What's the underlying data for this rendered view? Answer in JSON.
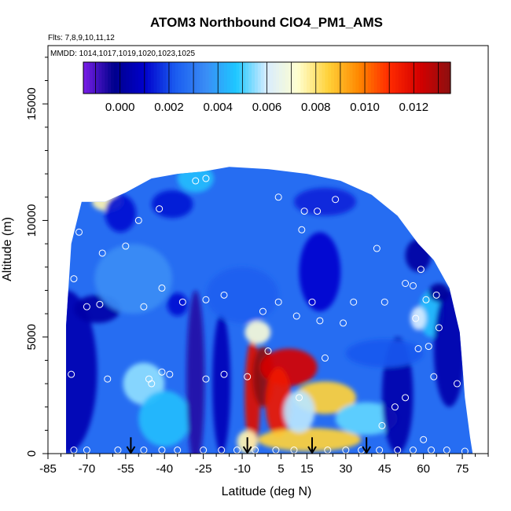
{
  "chart_data": {
    "type": "heatmap",
    "title": "ATOM3 Northbound ClO4_PM1_AMS",
    "subtitle_flights": "Flts: 7,8,9,10,11,12",
    "subtitle_dates": "MMDD: 1014,1017,1019,1020,1023,1025",
    "xlabel": "Latitude (deg N)",
    "ylabel": "Altitude (m)",
    "xlim": [
      -85,
      85
    ],
    "ylim": [
      0,
      17500
    ],
    "x_ticks": [
      "-85",
      "-70",
      "-55",
      "-40",
      "-25",
      "-10",
      "5",
      "15",
      "30",
      "45",
      "60",
      "75"
    ],
    "x_tick_values": [
      -85,
      -70,
      -55,
      -40,
      -25,
      -10,
      5,
      15,
      30,
      45,
      60,
      75
    ],
    "y_ticks": [
      "0",
      "5000",
      "10000",
      "15000"
    ],
    "y_tick_values": [
      0,
      5000,
      10000,
      15000
    ],
    "colorbar": {
      "min": -0.0015,
      "max": 0.0135,
      "tick_labels": [
        "0.000",
        "0.002",
        "0.004",
        "0.006",
        "0.008",
        "0.010",
        "0.012"
      ],
      "tick_values": [
        0.0,
        0.002,
        0.004,
        0.006,
        0.008,
        0.01,
        0.012
      ],
      "colors": [
        "#7a1fe8",
        "#00008c",
        "#0000cc",
        "#1a5cf0",
        "#3a8cf5",
        "#1ec8ff",
        "#d8ecff",
        "#ffffd0",
        "#ffd23a",
        "#ff8800",
        "#ff2a00",
        "#d40000",
        "#8c1010"
      ]
    },
    "cloud_extent": [
      {
        "lat": -78,
        "top": 5500
      },
      {
        "lat": -76,
        "top": 9000
      },
      {
        "lat": -72,
        "top": 10800
      },
      {
        "lat": -63,
        "top": 10800
      },
      {
        "lat": -55,
        "top": 11200
      },
      {
        "lat": -45,
        "top": 11800
      },
      {
        "lat": -35,
        "top": 12000
      },
      {
        "lat": -25,
        "top": 12100
      },
      {
        "lat": -15,
        "top": 12300
      },
      {
        "lat": 0,
        "top": 12200
      },
      {
        "lat": 15,
        "top": 12000
      },
      {
        "lat": 28,
        "top": 11700
      },
      {
        "lat": 40,
        "top": 11100
      },
      {
        "lat": 50,
        "top": 10200
      },
      {
        "lat": 58,
        "top": 9000
      },
      {
        "lat": 64,
        "top": 8300
      },
      {
        "lat": 70,
        "top": 7100
      },
      {
        "lat": 74,
        "top": 5200
      },
      {
        "lat": 76,
        "top": 2400
      },
      {
        "lat": 78,
        "top": 700
      },
      {
        "lat": 79,
        "top": 0
      }
    ],
    "features": [
      {
        "lat": -78,
        "alt": 3500,
        "rx": 12,
        "ry": 3500,
        "value": 0.0005
      },
      {
        "lat": -66,
        "alt": 6200,
        "rx": 9,
        "ry": 600,
        "value": 0.0003
      },
      {
        "lat": -62,
        "alt": 10800,
        "rx": 6,
        "ry": 400,
        "value": 0.0075
      },
      {
        "lat": -57,
        "alt": 10300,
        "rx": 6,
        "ry": 800,
        "value": 0.0012
      },
      {
        "lat": -52,
        "alt": 7500,
        "rx": 15,
        "ry": 1500,
        "value": 0.0035
      },
      {
        "lat": -48,
        "alt": 3000,
        "rx": 8,
        "ry": 900,
        "value": 0.0055
      },
      {
        "lat": -40,
        "alt": 1500,
        "rx": 10,
        "ry": 1200,
        "value": 0.0045
      },
      {
        "lat": -37,
        "alt": 10700,
        "rx": 8,
        "ry": 600,
        "value": 0.0013
      },
      {
        "lat": -35,
        "alt": 6400,
        "rx": 4,
        "ry": 500,
        "value": 0.0012
      },
      {
        "lat": -28,
        "alt": 3200,
        "rx": 3.5,
        "ry": 3800,
        "value": -0.0006
      },
      {
        "lat": -28,
        "alt": 11800,
        "rx": 7,
        "ry": 600,
        "value": 0.0045
      },
      {
        "lat": -18,
        "alt": 3000,
        "rx": 3.5,
        "ry": 3000,
        "value": 0.0006
      },
      {
        "lat": -10,
        "alt": 6800,
        "rx": 14,
        "ry": 1200,
        "value": 0.0023
      },
      {
        "lat": -6,
        "alt": 2500,
        "rx": 3,
        "ry": 2400,
        "value": 0.012
      },
      {
        "lat": -2,
        "alt": 3300,
        "rx": 4,
        "ry": 1300,
        "value": 0.0135
      },
      {
        "lat": 8,
        "alt": 3700,
        "rx": 11,
        "ry": 800,
        "value": 0.0122
      },
      {
        "lat": 4,
        "alt": 2200,
        "rx": 5,
        "ry": 1500,
        "value": 0.0115
      },
      {
        "lat": 22,
        "alt": 2400,
        "rx": 12,
        "ry": 700,
        "value": 0.0085
      },
      {
        "lat": 16,
        "alt": 600,
        "rx": 20,
        "ry": 500,
        "value": 0.0085
      },
      {
        "lat": 12,
        "alt": 1800,
        "rx": 6,
        "ry": 900,
        "value": 0.0058
      },
      {
        "lat": -4,
        "alt": 5200,
        "rx": 5,
        "ry": 500,
        "value": 0.007
      },
      {
        "lat": -8,
        "alt": 500,
        "rx": 4,
        "ry": 500,
        "value": 0.0075
      },
      {
        "lat": 20,
        "alt": 7800,
        "rx": 8,
        "ry": 1700,
        "value": 0.0011
      },
      {
        "lat": 22,
        "alt": 10800,
        "rx": 12,
        "ry": 600,
        "value": 0.0015
      },
      {
        "lat": 38,
        "alt": 1500,
        "rx": 12,
        "ry": 700,
        "value": 0.0052
      },
      {
        "lat": 50,
        "alt": 2500,
        "rx": 6,
        "ry": 2500,
        "value": 0.0004
      },
      {
        "lat": 45,
        "alt": 4300,
        "rx": 15,
        "ry": 600,
        "value": 0.0022
      },
      {
        "lat": 58,
        "alt": 8500,
        "rx": 5,
        "ry": 700,
        "value": 0.0002
      },
      {
        "lat": 63,
        "alt": 6000,
        "rx": 5,
        "ry": 1000,
        "value": 0.0045
      },
      {
        "lat": 70,
        "alt": 4500,
        "rx": 6,
        "ry": 2500,
        "value": 0.0004
      },
      {
        "lat": 66,
        "alt": 6900,
        "rx": 4,
        "ry": 400,
        "value": 0.0
      },
      {
        "lat": 58,
        "alt": 5800,
        "rx": 3,
        "ry": 500,
        "value": 0.006
      }
    ],
    "background_value": 0.0027,
    "sample_points": [
      {
        "lat": -80,
        "alt": 5500
      },
      {
        "lat": -76,
        "alt": 3400
      },
      {
        "lat": -75,
        "alt": 7500
      },
      {
        "lat": -73,
        "alt": 9500
      },
      {
        "lat": -70,
        "alt": 6300
      },
      {
        "lat": -65,
        "alt": 6400
      },
      {
        "lat": -64,
        "alt": 8600
      },
      {
        "lat": -62,
        "alt": 3200
      },
      {
        "lat": -55,
        "alt": 8900
      },
      {
        "lat": -50,
        "alt": 10000
      },
      {
        "lat": -48,
        "alt": 6300
      },
      {
        "lat": -46,
        "alt": 3200
      },
      {
        "lat": -45,
        "alt": 3000
      },
      {
        "lat": -42,
        "alt": 10500
      },
      {
        "lat": -41,
        "alt": 7100
      },
      {
        "lat": -41,
        "alt": 3500
      },
      {
        "lat": -38,
        "alt": 3400
      },
      {
        "lat": -33,
        "alt": 6500
      },
      {
        "lat": -28,
        "alt": 11700
      },
      {
        "lat": -24,
        "alt": 11800
      },
      {
        "lat": -24,
        "alt": 6600
      },
      {
        "lat": -24,
        "alt": 3200
      },
      {
        "lat": -17,
        "alt": 6800
      },
      {
        "lat": -17,
        "alt": 3400
      },
      {
        "lat": -8,
        "alt": 12600
      },
      {
        "lat": -2,
        "alt": 6100
      },
      {
        "lat": 0,
        "alt": 4400
      },
      {
        "lat": -8,
        "alt": 3300
      },
      {
        "lat": 4,
        "alt": 11000
      },
      {
        "lat": 4,
        "alt": 6500
      },
      {
        "lat": 11,
        "alt": 5900
      },
      {
        "lat": 12,
        "alt": 2400
      },
      {
        "lat": 13,
        "alt": 9600
      },
      {
        "lat": 14,
        "alt": 10400
      },
      {
        "lat": 17,
        "alt": 6500
      },
      {
        "lat": 19,
        "alt": 10400
      },
      {
        "lat": 20,
        "alt": 5700
      },
      {
        "lat": 22,
        "alt": 4100
      },
      {
        "lat": 26,
        "alt": 10900
      },
      {
        "lat": 29,
        "alt": 5600
      },
      {
        "lat": 33,
        "alt": 6500
      },
      {
        "lat": 39,
        "alt": 11500
      },
      {
        "lat": 42,
        "alt": 8800
      },
      {
        "lat": 44,
        "alt": 1200
      },
      {
        "lat": 45,
        "alt": 6500
      },
      {
        "lat": 49,
        "alt": 2000
      },
      {
        "lat": 53,
        "alt": 7300
      },
      {
        "lat": 53,
        "alt": 2400
      },
      {
        "lat": 56,
        "alt": 7200
      },
      {
        "lat": 57,
        "alt": 5800
      },
      {
        "lat": 58,
        "alt": 4500
      },
      {
        "lat": 59,
        "alt": 7900
      },
      {
        "lat": 60,
        "alt": 600
      },
      {
        "lat": 61,
        "alt": 6600
      },
      {
        "lat": 62,
        "alt": 4600
      },
      {
        "lat": 64,
        "alt": 3300
      },
      {
        "lat": 65,
        "alt": 6800
      },
      {
        "lat": 66,
        "alt": 5400
      },
      {
        "lat": 68,
        "alt": 8400
      },
      {
        "lat": 73,
        "alt": 3000
      },
      {
        "lat": 76,
        "alt": 100
      },
      {
        "lat": -75,
        "alt": 150
      },
      {
        "lat": -70,
        "alt": 150
      },
      {
        "lat": -58,
        "alt": 150
      },
      {
        "lat": -48,
        "alt": 150
      },
      {
        "lat": -41,
        "alt": 150
      },
      {
        "lat": -35,
        "alt": 150
      },
      {
        "lat": -25,
        "alt": 150
      },
      {
        "lat": -18,
        "alt": 150
      },
      {
        "lat": -12,
        "alt": 150
      },
      {
        "lat": -5,
        "alt": 150
      },
      {
        "lat": 3,
        "alt": 150
      },
      {
        "lat": 10,
        "alt": 150
      },
      {
        "lat": 23,
        "alt": 150
      },
      {
        "lat": 30,
        "alt": 150
      },
      {
        "lat": 36,
        "alt": 150
      },
      {
        "lat": 43,
        "alt": 150
      },
      {
        "lat": 50,
        "alt": 150
      },
      {
        "lat": 56,
        "alt": 150
      },
      {
        "lat": 63,
        "alt": 150
      },
      {
        "lat": 69,
        "alt": 150
      }
    ],
    "arrows": [
      {
        "lat": -53,
        "alt_top": 700,
        "alt_bottom": 0
      },
      {
        "lat": -8,
        "alt_top": 700,
        "alt_bottom": 0
      },
      {
        "lat": 17,
        "alt_top": 700,
        "alt_bottom": 0
      },
      {
        "lat": 38,
        "alt_top": 700,
        "alt_bottom": 0
      }
    ],
    "grid": false,
    "legend": "colorbar at top-inside"
  }
}
